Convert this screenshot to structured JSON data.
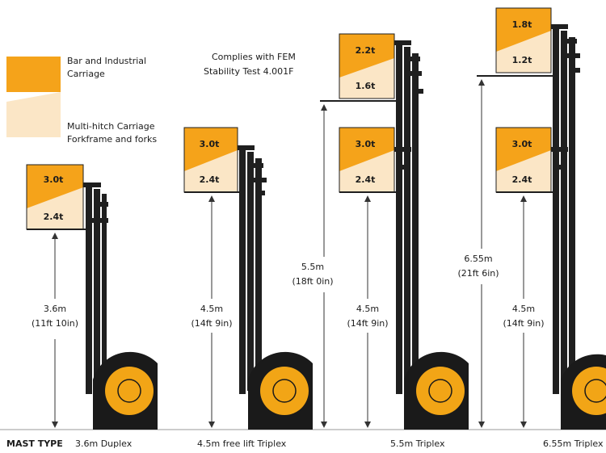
{
  "colors": {
    "orange": "#F5A31A",
    "cream": "#FBE6C6",
    "mast": "#1F1F1F",
    "wheel_tyre": "#1A1A1A",
    "wheel_hub": "#F2A516",
    "line": "#333333"
  },
  "legend": {
    "bar_industrial": [
      "Bar and Industrial",
      "Carriage"
    ],
    "multi_hitch": [
      "Multi-hitch Carriage",
      "Forkframe and forks"
    ]
  },
  "compliance": [
    "Complies with FEM",
    "Stability Test 4.001F"
  ],
  "mast_type_label": "MAST TYPE",
  "masts": [
    {
      "name": "3.6m Duplex",
      "loads": [
        {
          "bar": "3.0t",
          "multi": "2.4t"
        }
      ],
      "heights": [
        {
          "metric": "3.6m",
          "imperial": "(11ft 10in)"
        }
      ]
    },
    {
      "name": "4.5m free lift Triplex",
      "loads": [
        {
          "bar": "3.0t",
          "multi": "2.4t"
        }
      ],
      "heights": [
        {
          "metric": "4.5m",
          "imperial": "(14ft 9in)"
        }
      ]
    },
    {
      "name": "5.5m Triplex",
      "loads": [
        {
          "bar": "2.2t",
          "multi": "1.6t"
        },
        {
          "bar": "3.0t",
          "multi": "2.4t"
        }
      ],
      "heights": [
        {
          "metric": "5.5m",
          "imperial": "(18ft 0in)"
        },
        {
          "metric": "4.5m",
          "imperial": "(14ft 9in)"
        }
      ]
    },
    {
      "name": "6.55m Triplex",
      "loads": [
        {
          "bar": "1.8t",
          "multi": "1.2t"
        },
        {
          "bar": "3.0t",
          "multi": "2.4t"
        }
      ],
      "heights": [
        {
          "metric": "6.55m",
          "imperial": "(21ft 6in)"
        },
        {
          "metric": "4.5m",
          "imperial": "(14ft 9in)"
        }
      ]
    }
  ]
}
